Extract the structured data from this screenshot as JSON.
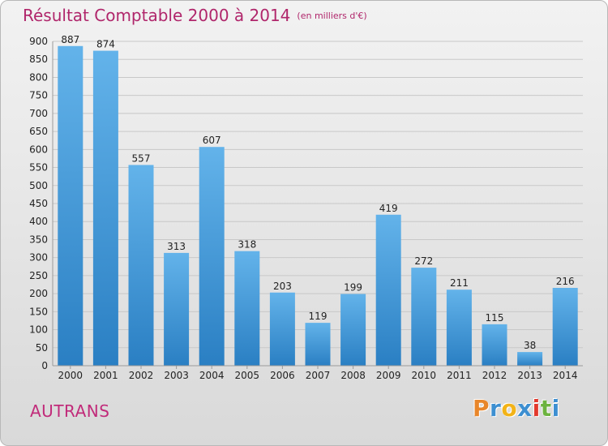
{
  "title": "Résultat Comptable 2000 à 2014",
  "unit": "(en milliers d'€)",
  "commune": "AUTRANS",
  "logo": {
    "letters": [
      "P",
      "r",
      "o",
      "x",
      "i",
      "t",
      "i"
    ],
    "colors": [
      "#e8862a",
      "#3d8fd1",
      "#f2b318",
      "#3d8fd1",
      "#e23a2e",
      "#6cb33f",
      "#3d8fd1"
    ]
  },
  "colors": {
    "bar_top": "#63b3ea",
    "bar_bottom": "#2a7fc3",
    "grid": "#c8c8c8"
  },
  "chart_data": {
    "type": "bar",
    "categories": [
      "2000",
      "2001",
      "2002",
      "2003",
      "2004",
      "2005",
      "2006",
      "2007",
      "2008",
      "2009",
      "2010",
      "2011",
      "2012",
      "2013",
      "2014"
    ],
    "values": [
      887,
      874,
      557,
      313,
      607,
      318,
      203,
      119,
      199,
      419,
      272,
      211,
      115,
      38,
      216
    ],
    "ylim": [
      0,
      900
    ],
    "yticks": [
      0,
      50,
      100,
      150,
      200,
      250,
      300,
      350,
      400,
      450,
      500,
      550,
      600,
      650,
      700,
      750,
      800,
      850,
      900
    ],
    "grid": true
  }
}
